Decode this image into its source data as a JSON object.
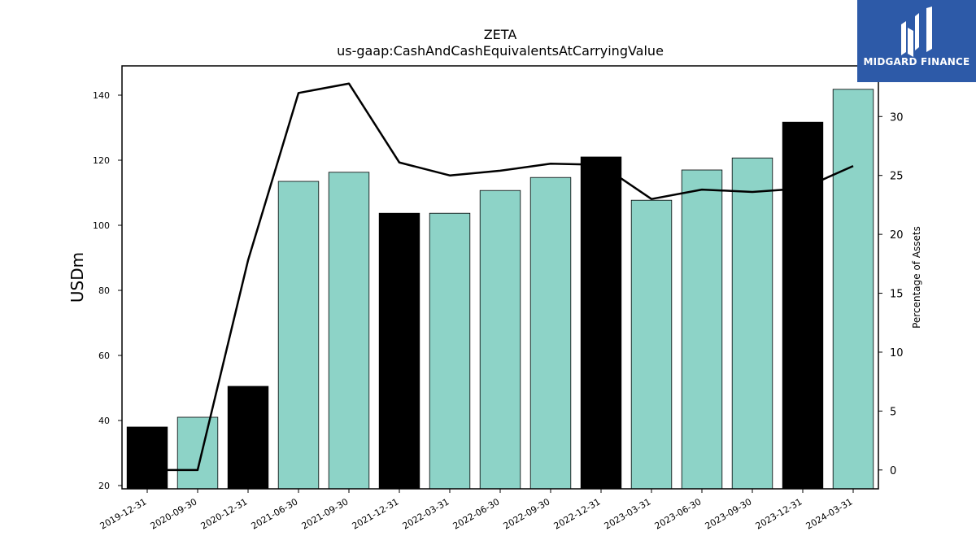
{
  "chart_data": {
    "type": "bar",
    "title": "ZETA",
    "subtitle": "us-gaap:CashAndCashEquivalentsAtCarryingValue",
    "ylabel": "USDm",
    "y2label": "Percentage of Assets",
    "ylim": [
      19,
      149
    ],
    "y2lim": [
      -1.6,
      34.3
    ],
    "yticks": [
      20,
      40,
      60,
      80,
      100,
      120,
      140
    ],
    "y2ticks": [
      0,
      5,
      10,
      15,
      20,
      25,
      30
    ],
    "categories": [
      "2019-12-31",
      "2020-09-30",
      "2020-12-31",
      "2021-06-30",
      "2021-09-30",
      "2021-12-31",
      "2022-03-31",
      "2022-06-30",
      "2022-09-30",
      "2022-12-31",
      "2023-03-31",
      "2023-06-30",
      "2023-09-30",
      "2023-12-31",
      "2024-03-31"
    ],
    "series": [
      {
        "type": "bar",
        "values": [
          38.0,
          41.0,
          50.5,
          113.5,
          116.3,
          103.7,
          103.7,
          110.7,
          114.7,
          121.0,
          107.7,
          117.0,
          120.7,
          131.7,
          141.8
        ],
        "fiscal_year_end": [
          true,
          false,
          true,
          false,
          false,
          true,
          false,
          false,
          false,
          true,
          false,
          false,
          false,
          true,
          false
        ],
        "colors": {
          "annual": "#000000",
          "quarterly": "#8dd3c7"
        }
      },
      {
        "type": "line",
        "axis": "right",
        "color": "#000000",
        "values": [
          0.0,
          0.0,
          17.8,
          32.0,
          32.8,
          26.1,
          25.0,
          25.4,
          26.0,
          25.9,
          23.0,
          23.8,
          23.6,
          23.9,
          25.8
        ]
      }
    ],
    "grid": false,
    "legend": "none"
  },
  "logo": {
    "text": "MIDGARD FINANCE",
    "background": "#2d5aa8"
  }
}
